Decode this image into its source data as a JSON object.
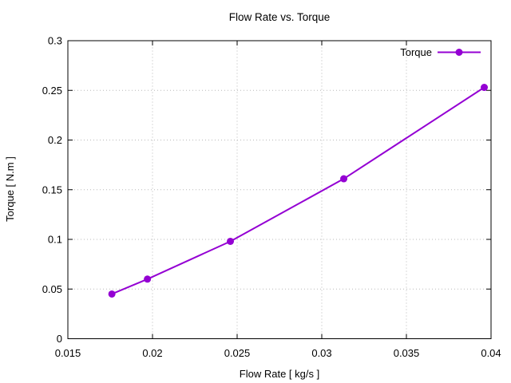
{
  "chart_data": {
    "type": "line",
    "title": "Flow Rate vs. Torque",
    "xlabel": "Flow Rate [ kg/s ]",
    "ylabel": "Torque [ N.m ]",
    "xlim": [
      0.015,
      0.04
    ],
    "ylim": [
      0,
      0.3
    ],
    "xticks": {
      "values": [
        0.015,
        0.02,
        0.025,
        0.03,
        0.035,
        0.04
      ],
      "labels": [
        "0.015",
        "0.02",
        "0.025",
        "0.03",
        "0.035",
        "0.04"
      ]
    },
    "yticks": {
      "values": [
        0,
        0.05,
        0.1,
        0.15,
        0.2,
        0.25,
        0.3
      ],
      "labels": [
        "0",
        "0.05",
        "0.1",
        "0.15",
        "0.2",
        "0.25",
        "0.3"
      ]
    },
    "grid": true,
    "grid_style": "dotted",
    "legend": {
      "position": "top-right",
      "entries": [
        {
          "label": "Torque",
          "color": "#9400d3",
          "marker": "filled-circle"
        }
      ]
    },
    "series": [
      {
        "name": "Torque",
        "color": "#9400d3",
        "marker": "filled-circle",
        "marker_radius": 4.5,
        "line_width": 2,
        "x": [
          0.0176,
          0.0197,
          0.0246,
          0.0313,
          0.0396
        ],
        "y": [
          0.045,
          0.06,
          0.098,
          0.161,
          0.253
        ]
      }
    ],
    "colors": {
      "axis": "#000000",
      "grid": "#b8b8b8",
      "background": "#ffffff",
      "text": "#000000"
    }
  }
}
